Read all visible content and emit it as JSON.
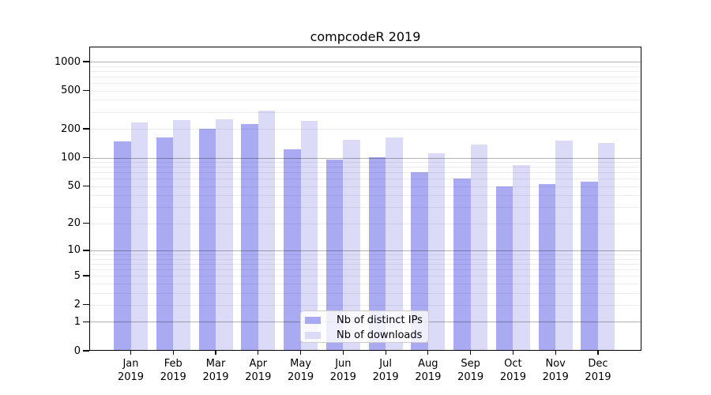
{
  "figure": {
    "title": "compcodeR 2019"
  },
  "chart_data": {
    "type": "bar",
    "title": "compcodeR 2019",
    "xlabel": "",
    "ylabel": "",
    "categories": [
      "Jan",
      "Feb",
      "Mar",
      "Apr",
      "May",
      "Jun",
      "Jul",
      "Aug",
      "Sep",
      "Oct",
      "Nov",
      "Dec"
    ],
    "x_tick_year": "2019",
    "series": [
      {
        "name": "Nb of distinct IPs",
        "color": "#aaaaf3",
        "values": [
          149,
          162,
          199,
          224,
          122,
          96,
          101,
          70,
          60,
          50,
          53,
          56
        ]
      },
      {
        "name": "Nb of downloads",
        "color": "#dbdbf8",
        "values": [
          232,
          247,
          252,
          309,
          243,
          153,
          161,
          112,
          138,
          83,
          150,
          142
        ]
      }
    ],
    "yticks": [
      0,
      1,
      2,
      5,
      10,
      20,
      50,
      100,
      200,
      500,
      1000
    ],
    "ylim": [
      0,
      1430
    ],
    "yscale": "log10(1+x)",
    "grid": "horizontal, light minor lines at 2-9/20-90/200-900, darker lines at 1/10/100/1000",
    "legend_position": "inside, lower center",
    "frame": "full box",
    "colors": {
      "axis": "#000000",
      "grid_major": "#b2b2b2",
      "grid_minor": "#ececec",
      "background": "#ffffff"
    }
  }
}
